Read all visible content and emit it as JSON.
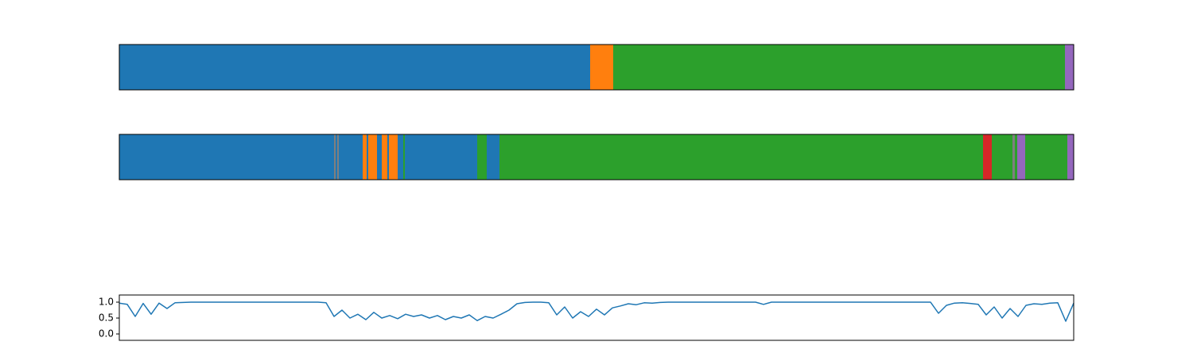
{
  "chart_data": [
    {
      "type": "segments",
      "xlim": [
        0,
        1200
      ],
      "segments": [
        {
          "start": 0,
          "end": 592,
          "color": "#1f77b4"
        },
        {
          "start": 592,
          "end": 621,
          "color": "#ff7f0e"
        },
        {
          "start": 621,
          "end": 1189,
          "color": "#2ca02c"
        },
        {
          "start": 1189,
          "end": 1200,
          "color": "#9467bd"
        }
      ]
    },
    {
      "type": "segments",
      "xlim": [
        0,
        1200
      ],
      "segments": [
        {
          "start": 0,
          "end": 270,
          "color": "#1f77b4"
        },
        {
          "start": 270,
          "end": 272,
          "color": "#7f7f7f"
        },
        {
          "start": 272,
          "end": 274,
          "color": "#1f77b4"
        },
        {
          "start": 274,
          "end": 276,
          "color": "#7f7f7f"
        },
        {
          "start": 276,
          "end": 306,
          "color": "#1f77b4"
        },
        {
          "start": 306,
          "end": 311,
          "color": "#ff7f0e"
        },
        {
          "start": 311,
          "end": 313,
          "color": "#1f77b4"
        },
        {
          "start": 313,
          "end": 324,
          "color": "#ff7f0e"
        },
        {
          "start": 324,
          "end": 330,
          "color": "#1f77b4"
        },
        {
          "start": 330,
          "end": 337,
          "color": "#ff7f0e"
        },
        {
          "start": 337,
          "end": 339,
          "color": "#1f77b4"
        },
        {
          "start": 339,
          "end": 350,
          "color": "#ff7f0e"
        },
        {
          "start": 350,
          "end": 357,
          "color": "#1f77b4"
        },
        {
          "start": 357,
          "end": 359,
          "color": "#2ca02c"
        },
        {
          "start": 359,
          "end": 450,
          "color": "#1f77b4"
        },
        {
          "start": 450,
          "end": 462,
          "color": "#2ca02c"
        },
        {
          "start": 462,
          "end": 478,
          "color": "#1f77b4"
        },
        {
          "start": 478,
          "end": 1086,
          "color": "#2ca02c"
        },
        {
          "start": 1086,
          "end": 1097,
          "color": "#d62728"
        },
        {
          "start": 1097,
          "end": 1123,
          "color": "#2ca02c"
        },
        {
          "start": 1123,
          "end": 1126,
          "color": "#7f7f7f"
        },
        {
          "start": 1126,
          "end": 1129,
          "color": "#2ca02c"
        },
        {
          "start": 1129,
          "end": 1139,
          "color": "#9467bd"
        },
        {
          "start": 1139,
          "end": 1192,
          "color": "#2ca02c"
        },
        {
          "start": 1192,
          "end": 1200,
          "color": "#9467bd"
        }
      ]
    },
    {
      "type": "line",
      "xlim": [
        0,
        1200
      ],
      "ylim": [
        -0.2,
        1.225
      ],
      "yticks": [
        {
          "value": 0,
          "label": "0.0"
        },
        {
          "value": 0.5,
          "label": "0.5"
        },
        {
          "value": 1,
          "label": "1.0"
        }
      ],
      "x": [
        0,
        10,
        20,
        30,
        40,
        50,
        60,
        70,
        80,
        90,
        100,
        110,
        120,
        130,
        140,
        150,
        160,
        170,
        180,
        190,
        200,
        210,
        220,
        230,
        240,
        250,
        260,
        270,
        280,
        290,
        300,
        310,
        320,
        330,
        340,
        350,
        360,
        370,
        380,
        390,
        400,
        410,
        420,
        430,
        440,
        450,
        460,
        470,
        480,
        490,
        500,
        510,
        520,
        530,
        540,
        550,
        560,
        570,
        580,
        590,
        600,
        610,
        620,
        630,
        640,
        650,
        660,
        670,
        680,
        690,
        700,
        710,
        720,
        730,
        740,
        750,
        760,
        770,
        780,
        790,
        800,
        810,
        820,
        830,
        840,
        850,
        860,
        870,
        880,
        890,
        900,
        910,
        920,
        930,
        940,
        950,
        960,
        970,
        980,
        990,
        1000,
        1010,
        1020,
        1030,
        1040,
        1050,
        1060,
        1070,
        1080,
        1090,
        1100,
        1110,
        1120,
        1130,
        1140,
        1150,
        1160,
        1170,
        1180,
        1190,
        1200
      ],
      "series": [
        {
          "color": "#1f77b4",
          "values": [
            0.97,
            0.93,
            0.55,
            0.96,
            0.62,
            0.97,
            0.8,
            0.98,
            0.99,
            1.0,
            1,
            1,
            1,
            1,
            1,
            1,
            1,
            1,
            1,
            1,
            1,
            1,
            1,
            1,
            1,
            1,
            0.98,
            0.55,
            0.75,
            0.5,
            0.62,
            0.45,
            0.68,
            0.5,
            0.58,
            0.48,
            0.62,
            0.55,
            0.6,
            0.5,
            0.58,
            0.45,
            0.55,
            0.5,
            0.6,
            0.42,
            0.55,
            0.5,
            0.62,
            0.75,
            0.95,
            0.99,
            1,
            1,
            0.98,
            0.6,
            0.85,
            0.5,
            0.7,
            0.55,
            0.78,
            0.6,
            0.82,
            0.88,
            0.95,
            0.92,
            0.98,
            0.97,
            0.99,
            1,
            1,
            1,
            1,
            1,
            1,
            1,
            1,
            1,
            1,
            1,
            1,
            0.93,
            1,
            1,
            1,
            1,
            1,
            1,
            1,
            1,
            1,
            1,
            1,
            1,
            1,
            1,
            1,
            1,
            1,
            1,
            1,
            1,
            1,
            0.65,
            0.9,
            0.97,
            0.98,
            0.96,
            0.93,
            0.6,
            0.85,
            0.5,
            0.8,
            0.55,
            0.9,
            0.95,
            0.93,
            0.97,
            0.98,
            0.4,
            0.97
          ]
        }
      ]
    }
  ]
}
